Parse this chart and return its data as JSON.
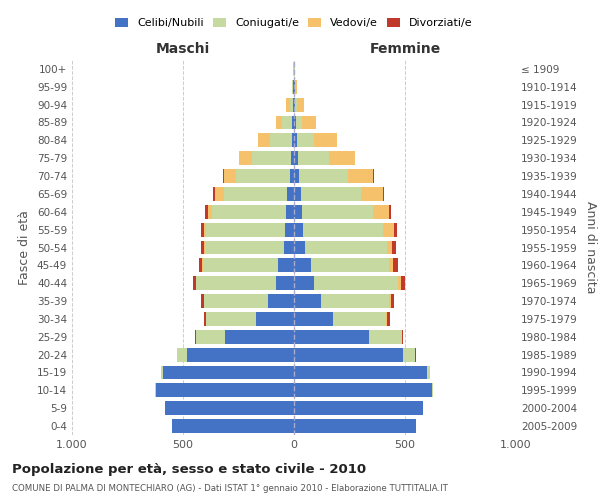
{
  "age_groups": [
    "0-4",
    "5-9",
    "10-14",
    "15-19",
    "20-24",
    "25-29",
    "30-34",
    "35-39",
    "40-44",
    "45-49",
    "50-54",
    "55-59",
    "60-64",
    "65-69",
    "70-74",
    "75-79",
    "80-84",
    "85-89",
    "90-94",
    "95-99",
    "100+"
  ],
  "birth_years": [
    "2005-2009",
    "2000-2004",
    "1995-1999",
    "1990-1994",
    "1985-1989",
    "1980-1984",
    "1975-1979",
    "1970-1974",
    "1965-1969",
    "1960-1964",
    "1955-1959",
    "1950-1954",
    "1945-1949",
    "1940-1944",
    "1935-1939",
    "1930-1934",
    "1925-1929",
    "1920-1924",
    "1915-1919",
    "1910-1914",
    "≤ 1909"
  ],
  "male_celibe": [
    550,
    580,
    620,
    590,
    480,
    310,
    170,
    115,
    80,
    70,
    45,
    40,
    38,
    30,
    20,
    15,
    10,
    8,
    5,
    3,
    2
  ],
  "male_coniugato": [
    1,
    2,
    5,
    10,
    45,
    130,
    225,
    290,
    360,
    340,
    355,
    355,
    330,
    285,
    240,
    175,
    100,
    45,
    15,
    5,
    2
  ],
  "male_vedovo": [
    0,
    0,
    0,
    0,
    1,
    1,
    1,
    2,
    3,
    4,
    5,
    10,
    20,
    40,
    55,
    60,
    50,
    30,
    15,
    3,
    1
  ],
  "male_divorziato": [
    0,
    0,
    0,
    0,
    2,
    5,
    10,
    10,
    12,
    12,
    12,
    12,
    12,
    8,
    5,
    0,
    0,
    0,
    0,
    0,
    0
  ],
  "female_celibe": [
    550,
    580,
    620,
    600,
    490,
    340,
    175,
    120,
    90,
    75,
    48,
    42,
    38,
    32,
    22,
    18,
    12,
    8,
    5,
    3,
    2
  ],
  "female_coniugato": [
    1,
    2,
    5,
    12,
    55,
    145,
    240,
    310,
    380,
    355,
    370,
    360,
    320,
    270,
    220,
    140,
    80,
    30,
    8,
    3,
    1
  ],
  "female_vedovo": [
    0,
    0,
    0,
    0,
    2,
    3,
    5,
    8,
    10,
    18,
    25,
    50,
    70,
    100,
    115,
    115,
    100,
    60,
    30,
    8,
    2
  ],
  "female_divorziato": [
    0,
    0,
    0,
    0,
    2,
    5,
    12,
    12,
    22,
    20,
    18,
    12,
    10,
    5,
    3,
    0,
    0,
    0,
    0,
    0,
    0
  ],
  "color_celibe": "#4472c4",
  "color_coniugato": "#c5d9a0",
  "color_vedovo": "#f5c26b",
  "color_divorziato": "#c0392b",
  "xlim": 1000,
  "title": "Popolazione per età, sesso e stato civile - 2010",
  "subtitle": "COMUNE DI PALMA DI MONTECHIARO (AG) - Dati ISTAT 1° gennaio 2010 - Elaborazione TUTTITALIA.IT",
  "ylabel_left": "Fasce di età",
  "ylabel_right": "Anni di nascita",
  "xlabel_left": "Maschi",
  "xlabel_right": "Femmine",
  "bg_color": "#ffffff",
  "grid_color": "#cccccc"
}
